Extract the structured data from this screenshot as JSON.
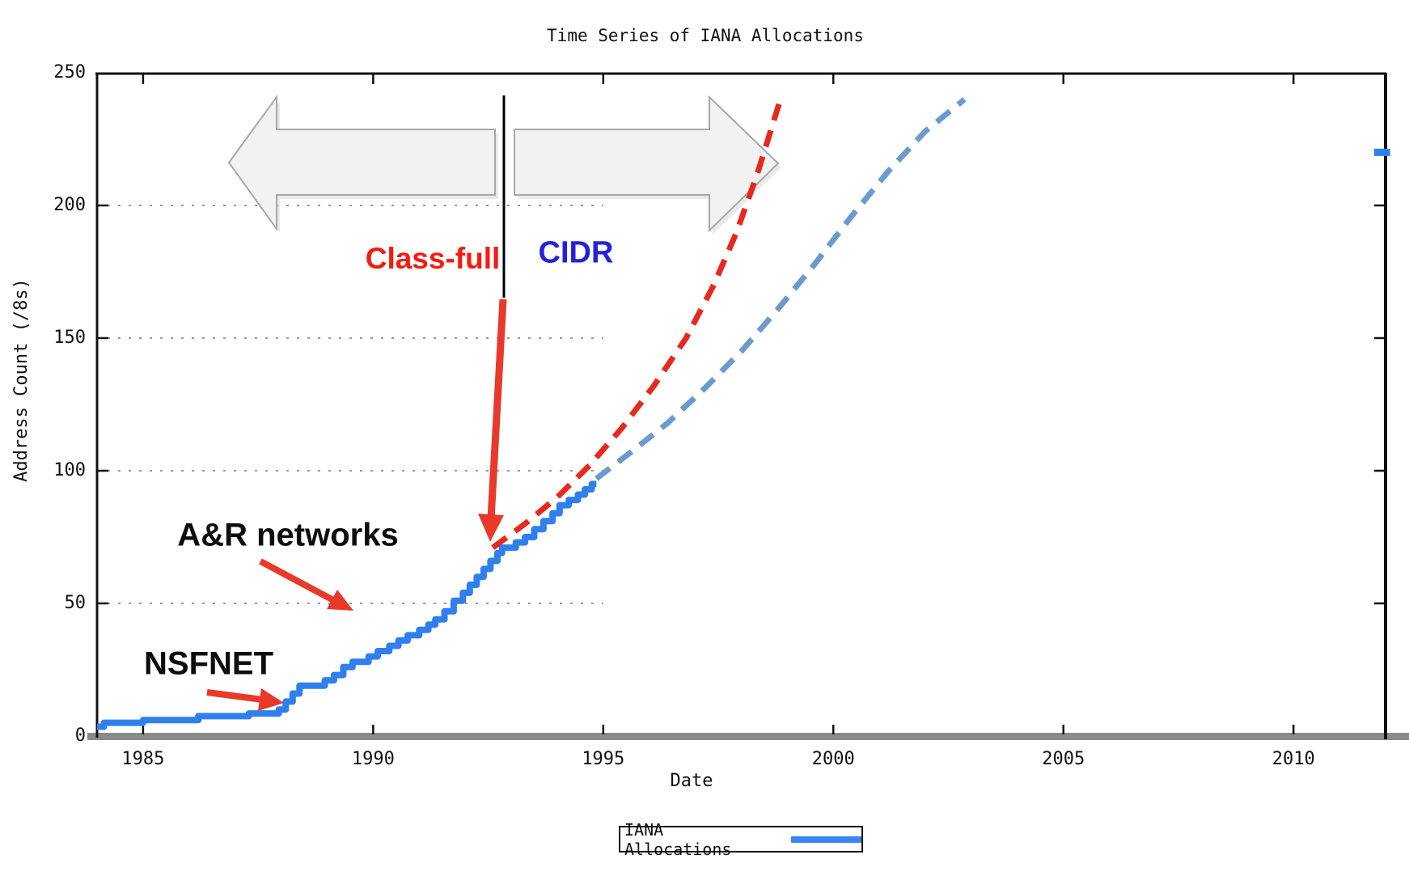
{
  "title": "Time Series of IANA Allocations",
  "axes": {
    "x_label": "Date",
    "y_label": "Address Count (/8s)",
    "x_ticks": [
      1985,
      1990,
      1995,
      2000,
      2005,
      2010
    ],
    "y_ticks": [
      0,
      50,
      100,
      150,
      200,
      250
    ],
    "grid_lines": [
      50,
      100,
      150,
      200
    ],
    "grid_end_year": 1995,
    "xlim": [
      1984,
      2012
    ],
    "ylim": [
      0,
      250
    ]
  },
  "legend": {
    "label": "IANA Allocations",
    "swatch_color": "#3b84f2"
  },
  "annotations": {
    "classfull": "Class-full",
    "cidr": "CIDR",
    "ar_networks": "A&R networks",
    "nsfnet": "NSFNET"
  },
  "colors": {
    "actual_line": "#2f80ec",
    "classfull_projection": "#e8281e",
    "cidr_projection": "#6b9ace",
    "annotation_arrow": "#e8392b",
    "era_arrow_fill": "#f2f2f2",
    "era_arrow_stroke": "#a8a8a8",
    "grid": "#9a9a9a",
    "axis_bar": "#8a8a8a",
    "divider_line": "#000000"
  },
  "chart_data": {
    "type": "line",
    "title": "Time Series of IANA Allocations",
    "xlabel": "Date",
    "ylabel": "Address Count (/8s)",
    "xlim": [
      1984,
      2012
    ],
    "ylim": [
      0,
      250
    ],
    "grid": "horizontal dotted lines at 50,100,150,200 extending from 1984 to 1995; legend boxed below chart",
    "legend_position": "bottom-center",
    "series": [
      {
        "name": "IANA Allocations",
        "style": "step",
        "dash": "solid",
        "color": "#2f80ec",
        "width": 8,
        "points": [
          [
            1984.0,
            3.5
          ],
          [
            1984.15,
            5
          ],
          [
            1985.0,
            6
          ],
          [
            1986.2,
            7.5
          ],
          [
            1987.3,
            8.5
          ],
          [
            1987.95,
            10
          ],
          [
            1988.1,
            13
          ],
          [
            1988.25,
            16
          ],
          [
            1988.4,
            19
          ],
          [
            1988.95,
            21
          ],
          [
            1989.15,
            23
          ],
          [
            1989.35,
            26
          ],
          [
            1989.55,
            28
          ],
          [
            1989.9,
            30
          ],
          [
            1990.1,
            32
          ],
          [
            1990.35,
            34
          ],
          [
            1990.55,
            36
          ],
          [
            1990.75,
            38
          ],
          [
            1991.0,
            40
          ],
          [
            1991.2,
            42
          ],
          [
            1991.35,
            44
          ],
          [
            1991.55,
            47
          ],
          [
            1991.75,
            51
          ],
          [
            1991.95,
            54
          ],
          [
            1992.1,
            57
          ],
          [
            1992.25,
            60
          ],
          [
            1992.4,
            63
          ],
          [
            1992.55,
            66
          ],
          [
            1992.7,
            69
          ],
          [
            1992.8,
            71
          ],
          [
            1993.1,
            73
          ],
          [
            1993.3,
            75
          ],
          [
            1993.5,
            78
          ],
          [
            1993.7,
            81
          ],
          [
            1993.9,
            84
          ],
          [
            1994.05,
            87
          ],
          [
            1994.25,
            89
          ],
          [
            1994.45,
            91
          ],
          [
            1994.6,
            93
          ],
          [
            1994.75,
            95
          ],
          [
            1994.85,
            95
          ]
        ]
      },
      {
        "name": "Class-full projection",
        "style": "line",
        "dash": "dashed",
        "color": "#e8281e",
        "width": 7,
        "points": [
          [
            1992.6,
            71
          ],
          [
            1993.3,
            80
          ],
          [
            1994.0,
            90
          ],
          [
            1994.7,
            102
          ],
          [
            1995.4,
            116
          ],
          [
            1996.1,
            132
          ],
          [
            1996.8,
            150
          ],
          [
            1997.4,
            170
          ],
          [
            1997.9,
            190
          ],
          [
            1998.35,
            212
          ],
          [
            1998.85,
            240
          ]
        ]
      },
      {
        "name": "CIDR projection",
        "style": "line",
        "dash": "dashed",
        "color": "#6b9ace",
        "width": 7,
        "points": [
          [
            1994.85,
            97
          ],
          [
            1995.6,
            107
          ],
          [
            1996.4,
            118
          ],
          [
            1997.2,
            131
          ],
          [
            1998.0,
            145
          ],
          [
            1998.8,
            161
          ],
          [
            1999.6,
            178
          ],
          [
            2000.4,
            196
          ],
          [
            2001.2,
            213
          ],
          [
            2002.0,
            228
          ],
          [
            2002.85,
            240
          ]
        ]
      },
      {
        "name": "IANA Allocations (later observation)",
        "style": "line",
        "dash": "solid",
        "color": "#2f80ec",
        "width": 9,
        "points": [
          [
            2011.75,
            220
          ],
          [
            2012.1,
            220
          ]
        ]
      }
    ]
  }
}
